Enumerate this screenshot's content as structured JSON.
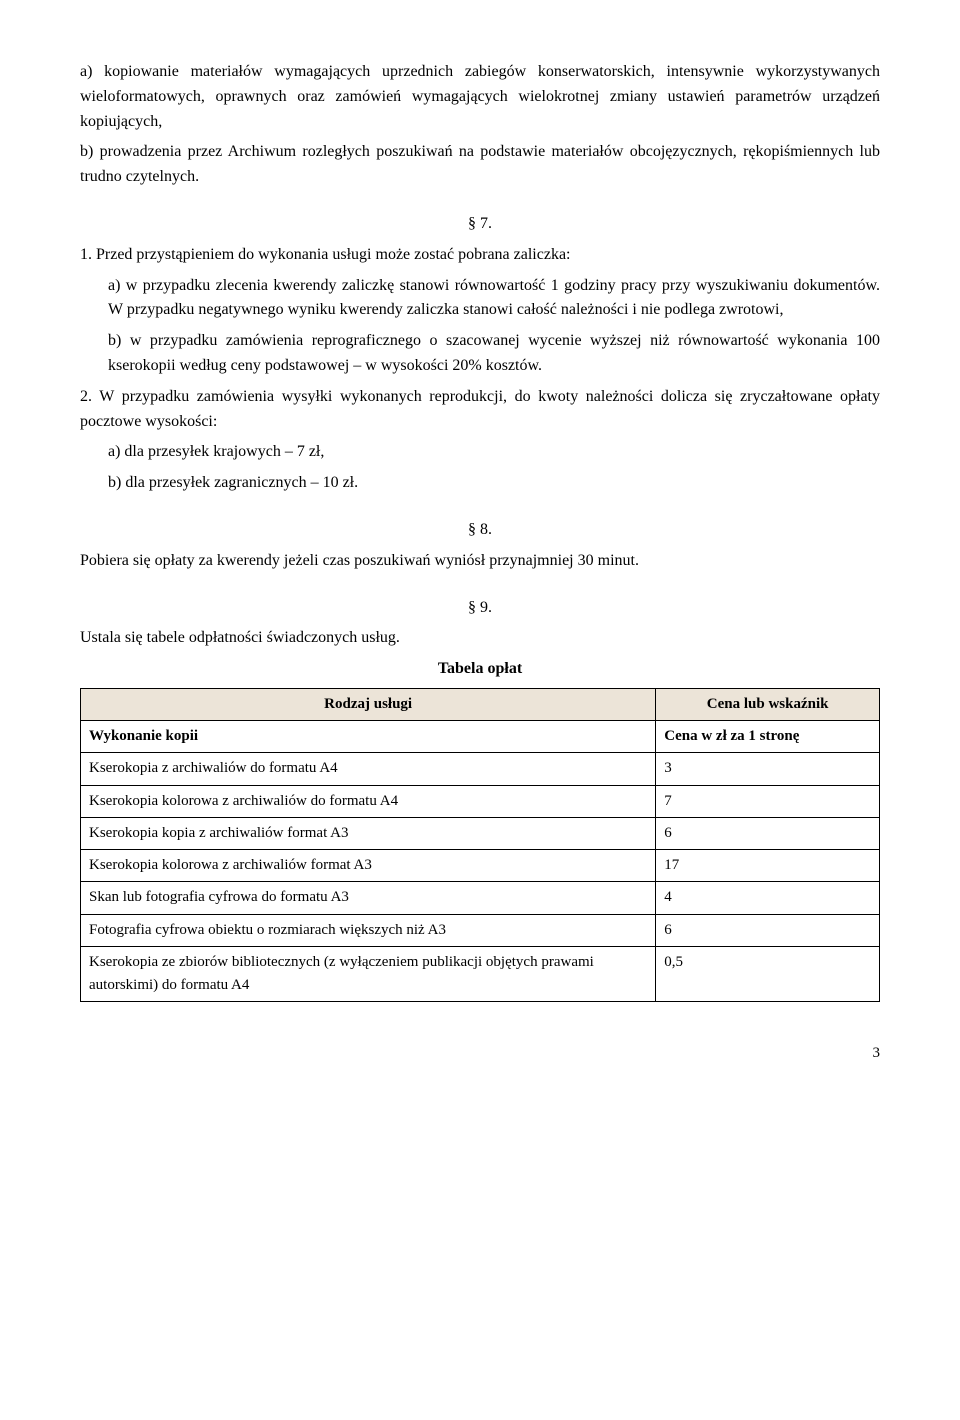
{
  "para_a": "a) kopiowanie materiałów wymagających uprzednich zabiegów konserwatorskich, intensywnie wykorzystywanych wieloformatowych, oprawnych oraz zamówień wymagających wielokrotnej zmiany ustawień parametrów urządzeń kopiujących,",
  "para_b": "b) prowadzenia przez Archiwum rozległych poszukiwań na podstawie materiałów obcojęzycznych, rękopiśmiennych lub trudno czytelnych.",
  "sec7": "§ 7.",
  "sec7_1_lead": "1. Przed przystąpieniem do wykonania usługi może zostać pobrana zaliczka:",
  "sec7_1a": "a) w przypadku zlecenia kwerendy zaliczkę stanowi równowartość 1 godziny pracy przy wyszukiwaniu dokumentów. W przypadku negatywnego wyniku kwerendy zaliczka stanowi całość należności i nie podlega zwrotowi,",
  "sec7_1b": "b) w przypadku zamówienia reprograficznego o szacowanej wycenie wyższej niż równowartość wykonania 100 kserokopii według ceny podstawowej – w wysokości 20% kosztów.",
  "sec7_2_lead": "2. W przypadku zamówienia wysyłki wykonanych reprodukcji, do kwoty należności dolicza się zryczałtowane opłaty pocztowe wysokości:",
  "sec7_2a": "a) dla przesyłek krajowych – 7 zł,",
  "sec7_2b": "b) dla przesyłek zagranicznych – 10 zł.",
  "sec8": "§ 8.",
  "sec8_text": "Pobiera się opłaty za kwerendy jeżeli czas poszukiwań wyniósł przynajmniej 30 minut.",
  "sec9": "§ 9.",
  "sec9_text": "Ustala się tabele odpłatności świadczonych usług.",
  "table_caption": "Tabela opłat",
  "table": {
    "header_service": "Rodzaj usługi",
    "header_price": "Cena lub wskaźnik",
    "subhead_service": "Wykonanie kopii",
    "subhead_price": "Cena w zł za 1 stronę",
    "rows": [
      {
        "service": "Kserokopia z archiwaliów do formatu A4",
        "price": "3"
      },
      {
        "service": "Kserokopia kolorowa z archiwaliów do formatu A4",
        "price": "7"
      },
      {
        "service": "Kserokopia kopia z archiwaliów format A3",
        "price": "6"
      },
      {
        "service": "Kserokopia kolorowa z archiwaliów format A3",
        "price": "17"
      },
      {
        "service": "Skan lub fotografia cyfrowa do formatu A3",
        "price": "4"
      },
      {
        "service": "Fotografia cyfrowa obiektu o rozmiarach większych niż A3",
        "price": "6"
      },
      {
        "service": "Kserokopia ze zbiorów bibliotecznych (z wyłączeniem publikacji objętych prawami autorskimi) do formatu A4",
        "price": "0,5"
      }
    ]
  },
  "page_number": "3"
}
